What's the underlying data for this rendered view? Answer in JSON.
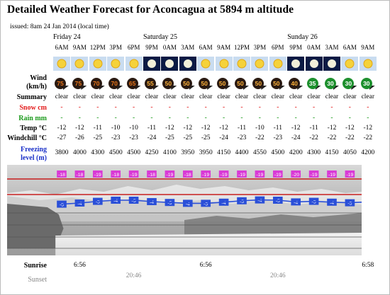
{
  "title": "Detailed Weather Forecast for Aconcagua at 5894 m altitude",
  "issued": "issued: 8am 24 Jan 2014 (local time)",
  "days": [
    {
      "label": "Friday 24",
      "col": 0
    },
    {
      "label": "Saturday 25",
      "col": 5
    },
    {
      "label": "Sunday 26",
      "col": 13
    }
  ],
  "hours": [
    "6AM",
    "9AM",
    "12PM",
    "3PM",
    "6PM",
    "9PM",
    "0AM",
    "3AM",
    "6AM",
    "9AM",
    "12PM",
    "3PM",
    "6PM",
    "9PM",
    "0AM",
    "3AM",
    "6AM",
    "9AM"
  ],
  "icons": [
    "sun",
    "sun",
    "sun",
    "sun",
    "sun",
    "moon",
    "moon",
    "moon",
    "sun",
    "sun",
    "sun",
    "sun",
    "sun",
    "moon",
    "moon",
    "moon",
    "sun",
    "sun"
  ],
  "labels": {
    "wind": "Wind",
    "wind_unit": "(km/h)",
    "summary": "Summary",
    "snow": "Snow cm",
    "rain": "Rain mm",
    "temp": "Temp °C",
    "windchill": "Windchill °C",
    "freezing": "Freezing",
    "freezing_unit": "level (m)",
    "sunrise": "Sunrise",
    "sunset": "Sunset"
  },
  "wind": [
    75,
    75,
    70,
    70,
    65,
    55,
    50,
    50,
    50,
    50,
    50,
    50,
    50,
    40,
    35,
    30,
    30,
    30
  ],
  "summary": [
    "clear",
    "clear",
    "clear",
    "clear",
    "clear",
    "clear",
    "clear",
    "clear",
    "clear",
    "clear",
    "clear",
    "clear",
    "clear",
    "clear",
    "clear",
    "clear",
    "clear",
    "clear"
  ],
  "snow": [
    "-",
    "-",
    "-",
    "-",
    "-",
    "-",
    "-",
    "-",
    "-",
    "-",
    "-",
    "-",
    "-",
    "-",
    "-",
    "-",
    "-",
    "-"
  ],
  "rain": [
    "-",
    "-",
    "-",
    "-",
    "-",
    "-",
    "-",
    "-",
    "-",
    "-",
    "-",
    "-",
    "-",
    "-",
    "-",
    "-",
    "-",
    "-"
  ],
  "temp": [
    "-12",
    "-12",
    "-11",
    "-10",
    "-10",
    "-11",
    "-12",
    "-12",
    "-12",
    "-12",
    "-11",
    "-10",
    "-11",
    "-12",
    "-11",
    "-12",
    "-12",
    "-12"
  ],
  "windchill": [
    "-27",
    "-26",
    "-25",
    "-23",
    "-23",
    "-24",
    "-25",
    "-25",
    "-25",
    "-24",
    "-23",
    "-22",
    "-23",
    "-24",
    "-22",
    "-22",
    "-22",
    "-22"
  ],
  "freezing": [
    "3800",
    "4000",
    "4300",
    "4500",
    "4500",
    "4250",
    "4100",
    "3950",
    "3950",
    "4150",
    "4400",
    "4550",
    "4500",
    "4200",
    "4300",
    "4150",
    "4050",
    "4200"
  ],
  "upper_badges": [
    "-18",
    "-18",
    "-19",
    "-18",
    "-19",
    "-18",
    "-19",
    "-18",
    "-19",
    "-19",
    "-19",
    "-19",
    "-19",
    "-20",
    "-19",
    "-19",
    "-19",
    "-19"
  ],
  "lower_badges": [
    "-5",
    "-4",
    "-5",
    "-4",
    "-5",
    "-4",
    "-5",
    "-4",
    "-5",
    "-4",
    "-5",
    "-4",
    "-5",
    "-4",
    "-5",
    "-4",
    "-5",
    "-4"
  ],
  "sunrise": [
    {
      "col": 1,
      "text": "6:56"
    },
    {
      "col": 8,
      "text": "6:56"
    },
    {
      "col": 17,
      "text": "6:58"
    }
  ],
  "sunset": [
    {
      "col": 4,
      "text": "20:46"
    },
    {
      "col": 12,
      "text": "20:46"
    }
  ],
  "colors": {
    "snow_red": "#e31b1b",
    "rain_green": "#1c9a1c",
    "freezing_blue": "#1a30c8",
    "wind_dark": "#2a1a12",
    "wind_orange": "#e8751a",
    "wind_green": "#1d8f2d",
    "badge_magenta": "#d93ad6",
    "badge_blue": "#2a4fd8",
    "line_red": "#c81e1e"
  }
}
